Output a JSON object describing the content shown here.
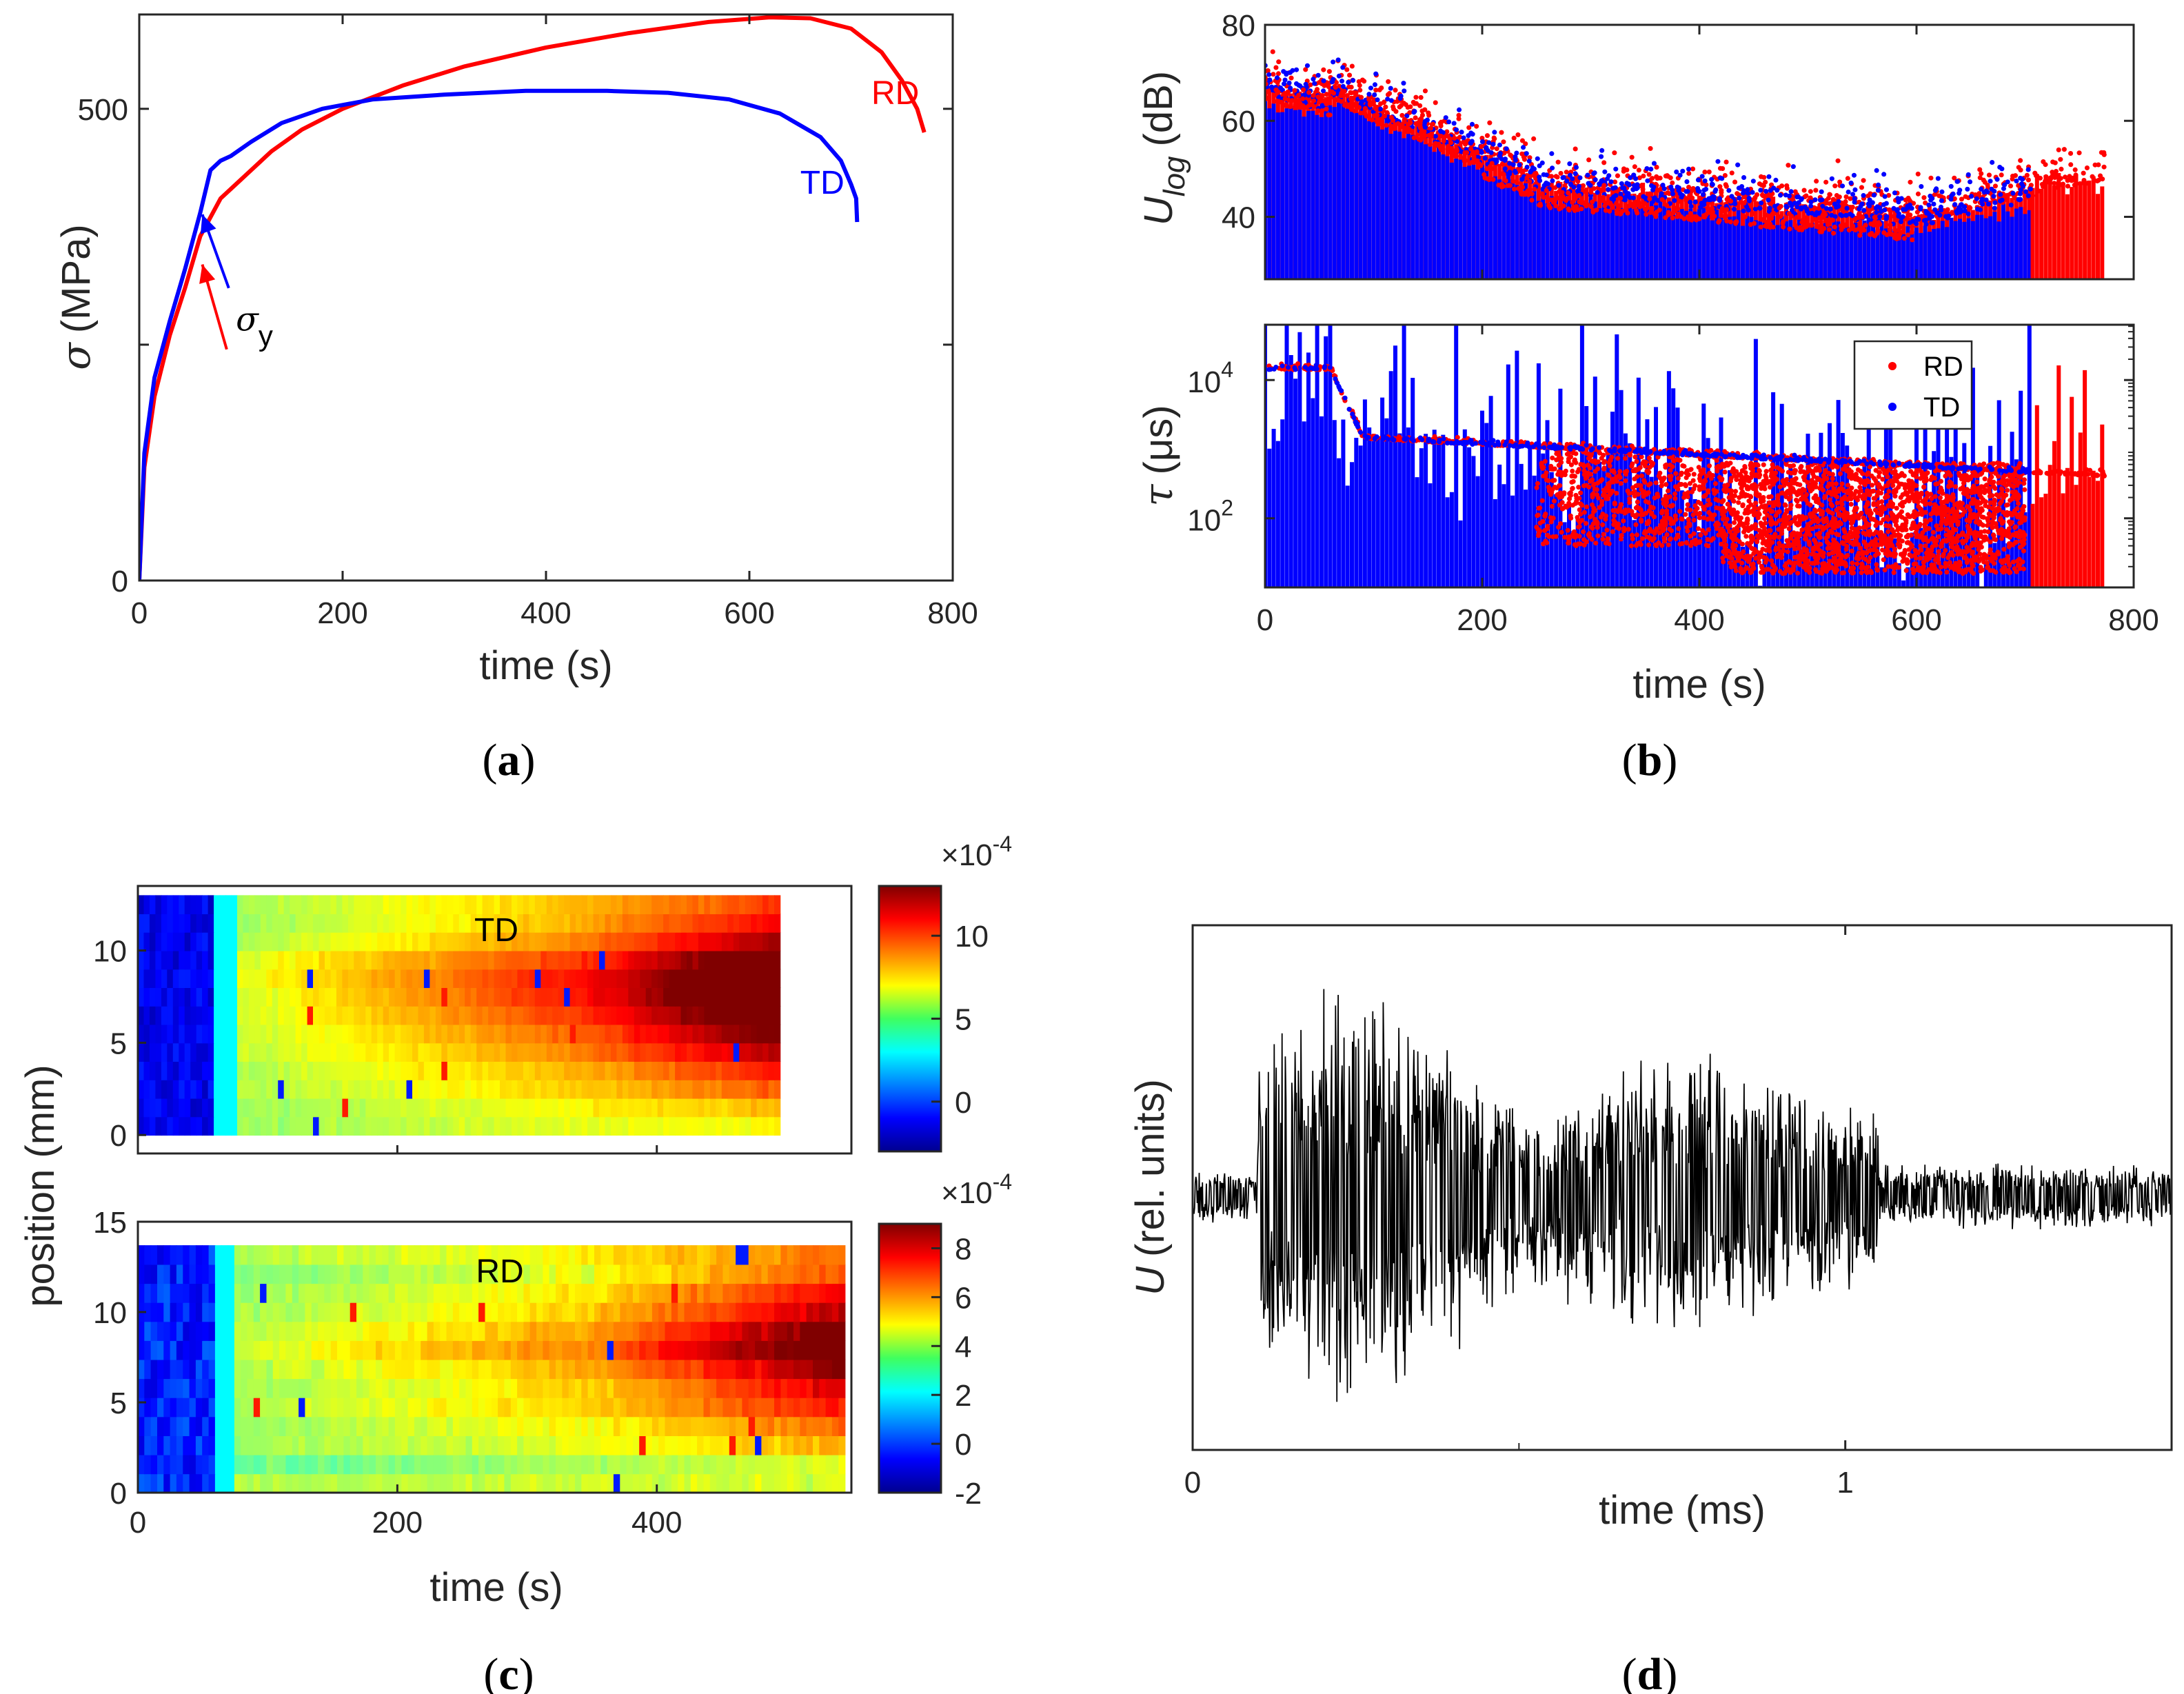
{
  "figure": {
    "captions": [
      "(",
      "a",
      ")",
      "(",
      "b",
      ")",
      "(",
      "c",
      ")",
      "(",
      "d",
      ")"
    ]
  },
  "colors": {
    "rd": "#ff0000",
    "td": "#0000ff",
    "signal": "#000000",
    "axis": "#262626"
  },
  "chart_data": [
    {
      "id": "a",
      "type": "line",
      "xlabel": "time (s)",
      "ylabel_symbol": "σ",
      "ylabel_unit": "(MPa)",
      "xlim": [
        0,
        800
      ],
      "ylim": [
        0,
        600
      ],
      "xticks": [
        0,
        200,
        400,
        600,
        800
      ],
      "yticks": [
        0,
        500
      ],
      "ytick_marks": [
        0,
        250,
        500
      ],
      "series": [
        {
          "name": "RD",
          "color": "#ff0000",
          "x": [
            0,
            5,
            15,
            30,
            45,
            60,
            80,
            100,
            130,
            160,
            200,
            260,
            320,
            400,
            480,
            560,
            620,
            660,
            700,
            730,
            750,
            765,
            772
          ],
          "y": [
            0,
            120,
            195,
            260,
            310,
            365,
            405,
            425,
            455,
            478,
            500,
            525,
            545,
            565,
            580,
            592,
            597,
            596,
            585,
            560,
            530,
            500,
            475
          ]
        },
        {
          "name": "TD",
          "color": "#0000ff",
          "x": [
            0,
            5,
            15,
            30,
            45,
            60,
            70,
            80,
            90,
            110,
            140,
            180,
            230,
            300,
            380,
            460,
            520,
            580,
            630,
            670,
            690,
            700,
            705,
            706
          ],
          "y": [
            0,
            135,
            215,
            275,
            330,
            390,
            435,
            445,
            450,
            465,
            485,
            500,
            510,
            515,
            519,
            519,
            517,
            510,
            495,
            470,
            445,
            420,
            405,
            380
          ]
        }
      ],
      "annotations": [
        {
          "text": "RD",
          "color": "#ff0000",
          "x": 720,
          "y": 505
        },
        {
          "text": "TD",
          "color": "#0000ff",
          "x": 650,
          "y": 410
        },
        {
          "text_symbol": "σ",
          "text_sub": "y",
          "x": 95,
          "y": 265
        }
      ]
    },
    {
      "id": "b-top",
      "type": "scatter",
      "ylabel_symbol": "U",
      "ylabel_sub": "log",
      "ylabel_unit": "(dB)",
      "xlim": [
        0,
        800
      ],
      "ylim": [
        27,
        80
      ],
      "yticks": [
        40,
        60,
        80
      ],
      "series": [
        {
          "name": "RD",
          "color": "#ff0000",
          "time_end": 773,
          "threshold_db": 28,
          "initial_max_db": 77
        },
        {
          "name": "TD",
          "color": "#0000ff",
          "time_end": 705,
          "threshold_db": 28,
          "initial_max_db": 75
        }
      ]
    },
    {
      "id": "b-bottom",
      "type": "scatter",
      "xlabel": "time (s)",
      "ylabel_symbol": "τ",
      "ylabel_unit": "(μs)",
      "xlim": [
        0,
        800
      ],
      "ylim_log10": [
        1,
        4.8
      ],
      "xticks": [
        0,
        200,
        400,
        600,
        800
      ],
      "yticks": [
        {
          "base": "10",
          "exp": "2",
          "value": 100
        },
        {
          "base": "10",
          "exp": "4",
          "value": 10000
        }
      ],
      "legend": {
        "position": "top-right",
        "entries": [
          "RD",
          "TD"
        ]
      },
      "series": [
        {
          "name": "RD",
          "color": "#ff0000",
          "time_end": 773
        },
        {
          "name": "TD",
          "color": "#0000ff",
          "time_end": 705
        }
      ]
    },
    {
      "id": "c-top",
      "type": "heatmap",
      "title": "TD",
      "xlim": [
        0,
        550
      ],
      "xticks": [
        200,
        400
      ],
      "ylim": [
        -1,
        13.5
      ],
      "yticks": [
        0,
        5,
        10
      ],
      "time_end": 495,
      "position_max": 13,
      "colorbar": {
        "ticks": [
          0,
          5,
          10
        ],
        "range": [
          -3,
          13
        ],
        "multiplier_base": "×10",
        "multiplier_exp": "-4"
      }
    },
    {
      "id": "c-bottom",
      "type": "heatmap",
      "title": "RD",
      "xlabel": "time (s)",
      "ylabel": "position (mm)",
      "xlim": [
        0,
        550
      ],
      "xticks": [
        0,
        200,
        400
      ],
      "ylim": [
        0,
        15
      ],
      "yticks": [
        0,
        5,
        10,
        15
      ],
      "time_end": 545,
      "position_max": 13.7,
      "colorbar": {
        "ticks": [
          -2,
          0,
          2,
          4,
          6,
          8
        ],
        "range": [
          -2,
          9
        ],
        "multiplier_base": "×10",
        "multiplier_exp": "-4"
      }
    },
    {
      "id": "d",
      "type": "line",
      "xlabel": "time (ms)",
      "ylabel_symbol": "U",
      "ylabel_unit": "(rel. units)",
      "xlim": [
        0,
        1.5
      ],
      "xticks": [
        0,
        1
      ],
      "ylim": [
        -1,
        1
      ],
      "series": [
        {
          "color": "#000000"
        }
      ]
    }
  ]
}
